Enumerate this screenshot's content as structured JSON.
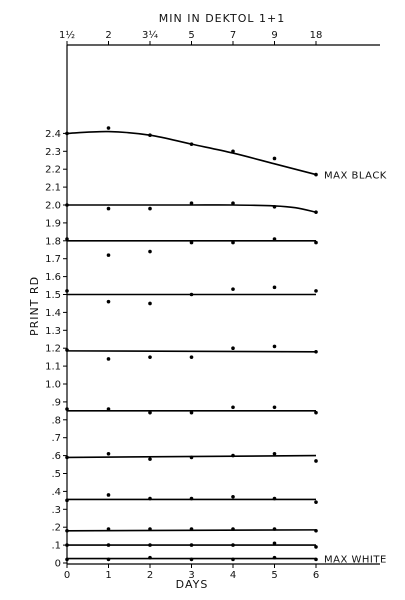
{
  "chart_data": {
    "type": "scatter",
    "title": "",
    "top_axis_label": "MIN IN DEKTOL 1+1",
    "top_ticks": [
      {
        "x": 0,
        "label": "1½"
      },
      {
        "x": 1,
        "label": "2"
      },
      {
        "x": 2,
        "label": "3¼"
      },
      {
        "x": 3,
        "label": "5"
      },
      {
        "x": 4,
        "label": "7"
      },
      {
        "x": 5,
        "label": "9"
      },
      {
        "x": 6,
        "label": "18"
      }
    ],
    "xlabel": "DAYS",
    "ylabel": "PRINT RD",
    "xlim": [
      0,
      7.5
    ],
    "ylim": [
      0,
      2.5
    ],
    "x_ticks": [
      "0",
      "1",
      "2",
      "3",
      "4",
      "5",
      "6"
    ],
    "y_ticks": [
      {
        "v": 0,
        "label": "0"
      },
      {
        "v": 0.1,
        "label": ".1"
      },
      {
        "v": 0.2,
        "label": ".2"
      },
      {
        "v": 0.3,
        "label": ".3"
      },
      {
        "v": 0.4,
        "label": ".4"
      },
      {
        "v": 0.5,
        "label": ".5"
      },
      {
        "v": 0.6,
        "label": ".6"
      },
      {
        "v": 0.7,
        "label": ".7"
      },
      {
        "v": 0.8,
        "label": ".8"
      },
      {
        "v": 0.9,
        "label": ".9"
      },
      {
        "v": 1.0,
        "label": "1.0"
      },
      {
        "v": 1.1,
        "label": "1.1"
      },
      {
        "v": 1.2,
        "label": "1.2"
      },
      {
        "v": 1.3,
        "label": "1.3"
      },
      {
        "v": 1.4,
        "label": "1.4"
      },
      {
        "v": 1.5,
        "label": "1.5"
      },
      {
        "v": 1.6,
        "label": "1.6"
      },
      {
        "v": 1.7,
        "label": "1.7"
      },
      {
        "v": 1.8,
        "label": "1.8"
      },
      {
        "v": 1.9,
        "label": "1.9"
      },
      {
        "v": 2.0,
        "label": "2.0"
      },
      {
        "v": 2.1,
        "label": "2.1"
      },
      {
        "v": 2.2,
        "label": "2.2"
      },
      {
        "v": 2.3,
        "label": "2.3"
      },
      {
        "v": 2.4,
        "label": "2.4"
      }
    ],
    "grid": false,
    "annotations": [
      {
        "text": "MAX BLACK",
        "series": 0
      },
      {
        "text": "MAX WHITE",
        "series": 10
      }
    ],
    "series": [
      {
        "x": [
          0,
          1,
          2,
          3,
          4,
          5,
          6
        ],
        "y": [
          2.4,
          2.43,
          2.39,
          2.34,
          2.3,
          2.26,
          2.17
        ],
        "curve": [
          [
            0,
            2.4
          ],
          [
            1,
            2.41
          ],
          [
            2,
            2.39
          ],
          [
            3,
            2.34
          ],
          [
            4,
            2.29
          ],
          [
            5,
            2.23
          ],
          [
            6,
            2.17
          ]
        ]
      },
      {
        "x": [
          0,
          1,
          2,
          3,
          4,
          5,
          6
        ],
        "y": [
          2.0,
          1.98,
          1.98,
          2.01,
          2.01,
          1.99,
          1.96
        ],
        "curve": [
          [
            0,
            2.0
          ],
          [
            1,
            2.0
          ],
          [
            2,
            2.0
          ],
          [
            3,
            2.0
          ],
          [
            4,
            2.0
          ],
          [
            5,
            1.995
          ],
          [
            5.5,
            1.985
          ],
          [
            6,
            1.96
          ]
        ]
      },
      {
        "x": [
          0,
          1,
          2,
          3,
          4,
          5,
          6
        ],
        "y": [
          1.81,
          1.72,
          1.74,
          1.79,
          1.79,
          1.81,
          1.79
        ],
        "curve": [
          [
            0,
            1.8
          ],
          [
            6,
            1.8
          ]
        ]
      },
      {
        "x": [
          0,
          1,
          2,
          3,
          4,
          5,
          6
        ],
        "y": [
          1.52,
          1.46,
          1.45,
          1.5,
          1.53,
          1.54,
          1.52
        ],
        "curve": [
          [
            0,
            1.5
          ],
          [
            6,
            1.5
          ]
        ]
      },
      {
        "x": [
          0,
          1,
          2,
          3,
          4,
          5,
          6
        ],
        "y": [
          1.19,
          1.14,
          1.15,
          1.15,
          1.2,
          1.21,
          1.18
        ],
        "curve": [
          [
            0,
            1.185
          ],
          [
            6,
            1.18
          ]
        ]
      },
      {
        "x": [
          0,
          1,
          2,
          3,
          4,
          5,
          6
        ],
        "y": [
          0.86,
          0.86,
          0.84,
          0.84,
          0.87,
          0.87,
          0.84
        ],
        "curve": [
          [
            0,
            0.85
          ],
          [
            6,
            0.85
          ]
        ]
      },
      {
        "x": [
          0,
          1,
          2,
          3,
          4,
          5,
          6
        ],
        "y": [
          0.59,
          0.61,
          0.58,
          0.59,
          0.6,
          0.61,
          0.57
        ],
        "curve": [
          [
            0,
            0.59
          ],
          [
            6,
            0.6
          ]
        ]
      },
      {
        "x": [
          0,
          1,
          2,
          3,
          4,
          5,
          6
        ],
        "y": [
          0.35,
          0.38,
          0.36,
          0.36,
          0.37,
          0.36,
          0.34
        ],
        "curve": [
          [
            0,
            0.355
          ],
          [
            6,
            0.355
          ]
        ]
      },
      {
        "x": [
          0,
          1,
          2,
          3,
          4,
          5,
          6
        ],
        "y": [
          0.18,
          0.19,
          0.19,
          0.19,
          0.19,
          0.19,
          0.18
        ],
        "curve": [
          [
            0,
            0.18
          ],
          [
            6,
            0.185
          ]
        ]
      },
      {
        "x": [
          0,
          1,
          2,
          3,
          4,
          5,
          6
        ],
        "y": [
          0.1,
          0.1,
          0.1,
          0.1,
          0.1,
          0.11,
          0.09
        ],
        "curve": [
          [
            0,
            0.1
          ],
          [
            6,
            0.1
          ]
        ]
      },
      {
        "x": [
          0,
          1,
          2,
          3,
          4,
          5,
          6
        ],
        "y": [
          0.02,
          0.02,
          0.03,
          0.02,
          0.02,
          0.03,
          0.02
        ],
        "curve": [
          [
            0,
            0.025
          ],
          [
            6,
            0.025
          ]
        ]
      }
    ]
  }
}
